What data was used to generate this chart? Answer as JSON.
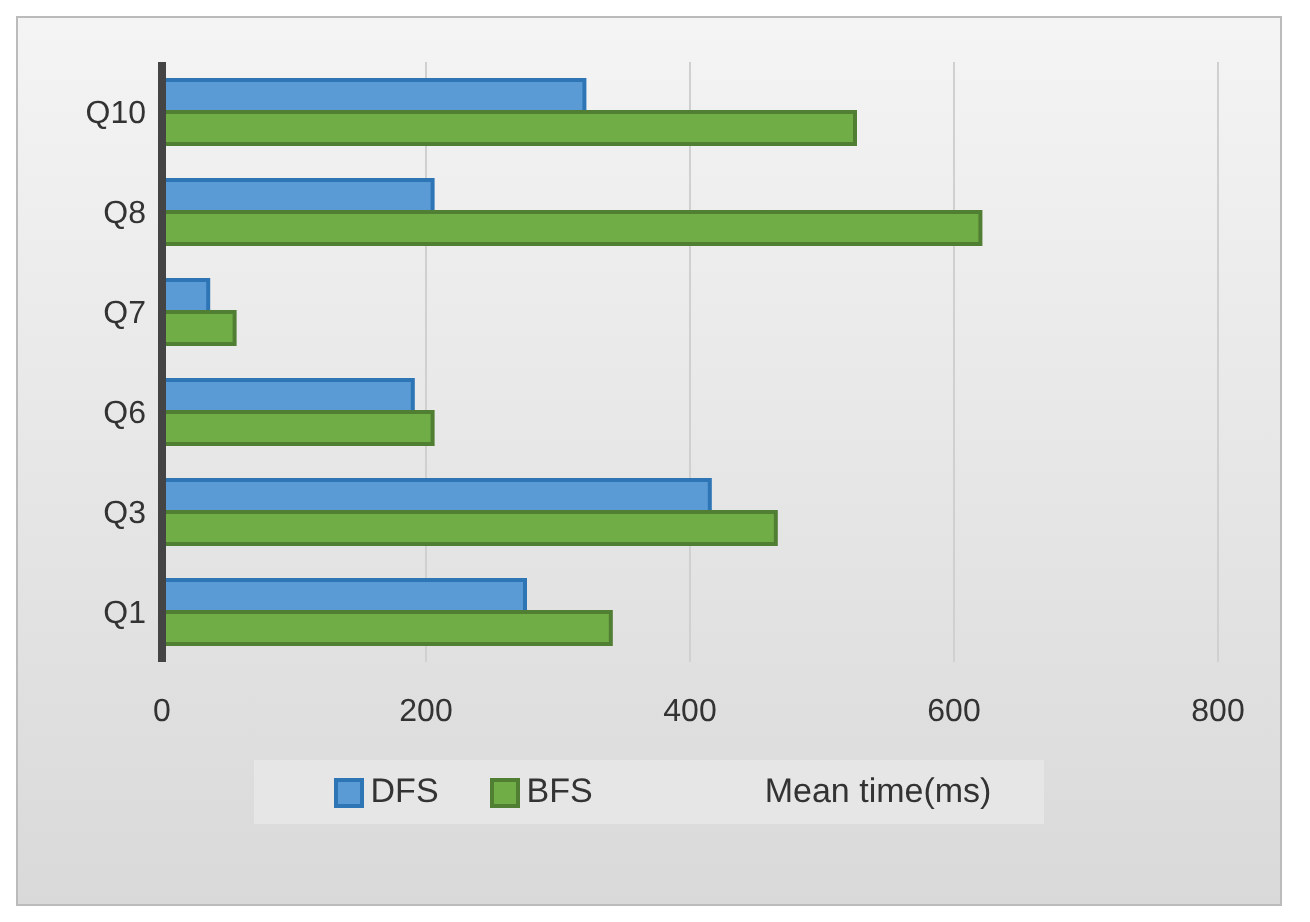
{
  "chart_data": {
    "type": "bar",
    "orientation": "horizontal",
    "xlabel": "Mean time(ms)",
    "categories": [
      "Q10",
      "Q8",
      "Q7",
      "Q6",
      "Q3",
      "Q1"
    ],
    "series": [
      {
        "name": "DFS",
        "color": "#5b9bd5",
        "values": [
          320,
          205,
          35,
          190,
          415,
          275
        ]
      },
      {
        "name": "BFS",
        "color": "#70ad47",
        "values": [
          525,
          620,
          55,
          205,
          465,
          340
        ]
      }
    ],
    "xlim": [
      0,
      800
    ],
    "xticks": [
      0,
      200,
      400,
      600,
      800
    ],
    "grid": "x",
    "legend": "bottom"
  }
}
